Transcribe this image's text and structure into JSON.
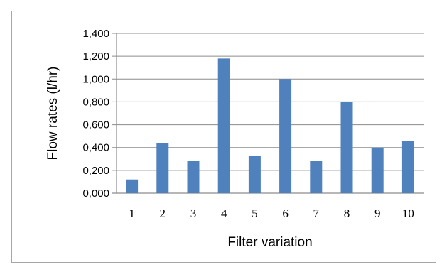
{
  "chart_data": {
    "type": "bar",
    "categories": [
      "1",
      "2",
      "3",
      "4",
      "5",
      "6",
      "7",
      "8",
      "9",
      "10"
    ],
    "values": [
      0.12,
      0.44,
      0.28,
      1.18,
      0.33,
      1.0,
      0.28,
      0.8,
      0.4,
      0.46
    ],
    "title": "",
    "xlabel": "Filter variation",
    "ylabel": "Flow rates (l/hr)",
    "ylim": [
      0,
      1.4
    ],
    "yticks": [
      "0,000",
      "0,200",
      "0,400",
      "0,600",
      "0,800",
      "1,000",
      "1,200",
      "1,400"
    ],
    "ytick_values": [
      0,
      0.2,
      0.4,
      0.6,
      0.8,
      1.0,
      1.2,
      1.4
    ],
    "grid": true,
    "legend": "none",
    "bar_color": "#4f81bd",
    "grid_color": "#8c8c8c"
  }
}
